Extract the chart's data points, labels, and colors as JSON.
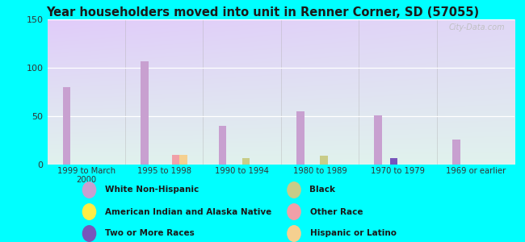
{
  "title": "Year householders moved into unit in Renner Corner, SD (57055)",
  "background_color": "#00FFFF",
  "categories": [
    "1999 to March\n2000",
    "1995 to 1998",
    "1990 to 1994",
    "1980 to 1989",
    "1970 to 1979",
    "1969 or earlier"
  ],
  "ylim": [
    0,
    150
  ],
  "yticks": [
    0,
    50,
    100,
    150
  ],
  "series": {
    "White Non-Hispanic": {
      "color": "#c8a0d0",
      "values": [
        80,
        107,
        40,
        55,
        51,
        26
      ]
    },
    "American Indian and Alaska Native": {
      "color": "#ffee44",
      "values": [
        0,
        0,
        0,
        0,
        0,
        0
      ]
    },
    "Two or More Races": {
      "color": "#7755bb",
      "values": [
        0,
        0,
        0,
        0,
        7,
        0
      ]
    },
    "Black": {
      "color": "#c8cc88",
      "values": [
        0,
        0,
        7,
        9,
        0,
        0
      ]
    },
    "Other Race": {
      "color": "#f0a0a8",
      "values": [
        0,
        10,
        0,
        0,
        0,
        0
      ]
    },
    "Hispanic or Latino": {
      "color": "#f5d090",
      "values": [
        0,
        10,
        0,
        0,
        0,
        0
      ]
    }
  },
  "bar_width": 0.1,
  "watermark": "City-Data.com",
  "legend_left": [
    "White Non-Hispanic",
    "American Indian and Alaska Native",
    "Two or More Races"
  ],
  "legend_right": [
    "Black",
    "Other Race",
    "Hispanic or Latino"
  ]
}
